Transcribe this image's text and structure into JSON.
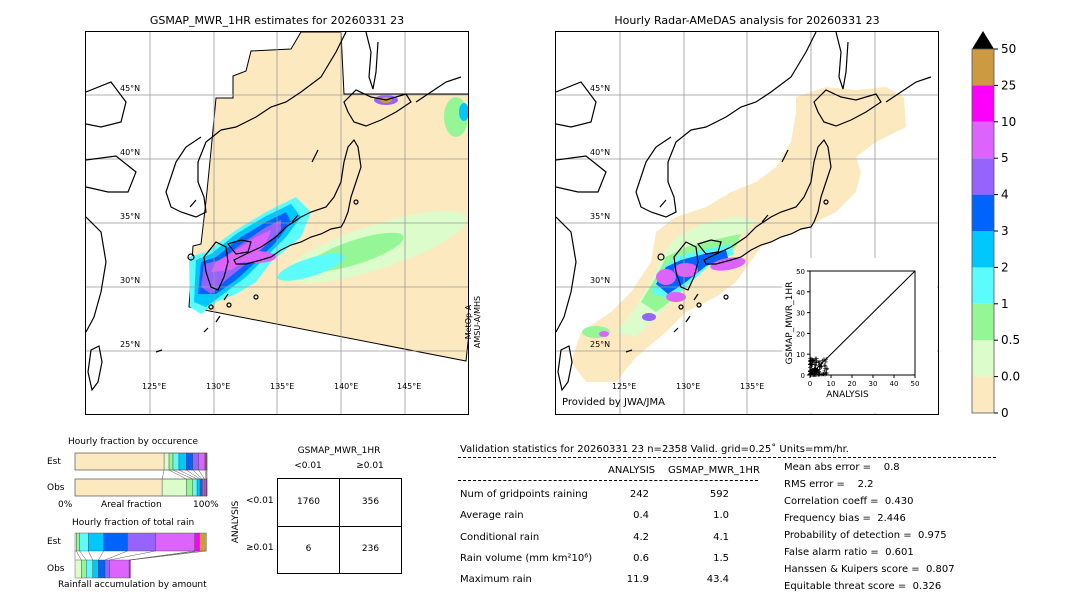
{
  "colors": {
    "scale": [
      "#fde9c0",
      "#dcfccc",
      "#94f694",
      "#5cfcfc",
      "#00c8fc",
      "#0064fc",
      "#9664fc",
      "#dc64fc",
      "#fc00fc",
      "#cc9a40"
    ],
    "over": "#000000"
  },
  "chart_data": [
    {
      "type": "map",
      "title": "GSMAP_MWR_1HR estimates for 20260331 23",
      "lon_ticks": [
        "125°E",
        "130°E",
        "135°E",
        "140°E",
        "145°E"
      ],
      "lat_ticks": [
        "45°N",
        "40°N",
        "35°N",
        "30°N",
        "25°N"
      ],
      "sensor_label_line1": "MetOp-A",
      "sensor_label_line2": "AMSU-A/MHS"
    },
    {
      "type": "map",
      "title": "Hourly Radar-AMeDAS analysis for 20260331 23",
      "lon_ticks": [
        "125°E",
        "130°E",
        "135°E"
      ],
      "lat_ticks": [
        "45°N",
        "40°N",
        "35°N",
        "30°N",
        "25°N"
      ],
      "credit": "Provided by JWA/JMA"
    },
    {
      "type": "scatter",
      "xlabel": "ANALYSIS",
      "ylabel": "GSMAP_MWR_1HR",
      "xlim": [
        0,
        50
      ],
      "ylim": [
        0,
        50
      ],
      "ticks": [
        "0",
        "10",
        "20",
        "30",
        "40",
        "50"
      ]
    },
    {
      "type": "colorbar",
      "tick_labels": [
        "0",
        "0.01",
        "0.5",
        "1",
        "2",
        "3",
        "4",
        "5",
        "10",
        "25",
        "50"
      ],
      "extend": "max"
    },
    {
      "type": "bar",
      "title": "Hourly fraction by occurence",
      "rows": [
        "Est",
        "Obs"
      ],
      "xlabel": "Areal fraction",
      "x_min_label": "0%",
      "x_max_label": "100%",
      "series": [
        {
          "row": "Est",
          "percent": [
            67.5,
            3.75,
            3,
            4.5,
            5.5,
            5,
            4.5,
            4.75,
            1,
            0.5
          ]
        },
        {
          "row": "Obs",
          "percent": [
            66,
            18.25,
            5,
            3.25,
            2.25,
            1.75,
            1.5,
            1.25,
            0.5,
            0.25
          ]
        }
      ]
    },
    {
      "type": "bar",
      "title": "Hourly fraction of total rain",
      "rows": [
        "Est",
        "Obs"
      ],
      "xlabel": "Rainfall accumulation by amount",
      "series": [
        {
          "row": "Est",
          "percent": [
            0,
            1,
            2.5,
            6.5,
            11.75,
            18,
            21.25,
            29.75,
            3.5,
            5.25
          ]
        },
        {
          "row": "Obs",
          "percent": [
            0,
            4.75,
            3.75,
            5,
            4.25,
            5,
            3.5,
            14.75,
            1,
            0
          ]
        }
      ]
    },
    {
      "type": "table",
      "title": "GSMAP_MWR_1HR",
      "col_headers": [
        "<0.01",
        "≥0.01"
      ],
      "row_label": "ANALYSIS",
      "row_headers": [
        "<0.01",
        "≥0.01"
      ],
      "cells": [
        [
          "1760",
          "356"
        ],
        [
          "6",
          "236"
        ]
      ]
    }
  ],
  "stats": {
    "title": "Validation statistics for 20260331 23  n=2358 Valid. grid=0.25˚ Units=mm/hr.",
    "col_analysis": "ANALYSIS",
    "col_gsmap": "GSMAP_MWR_1HR",
    "rows": [
      {
        "label": "Num of gridpoints raining",
        "analysis": "242",
        "gsmap": "592"
      },
      {
        "label": "Average rain",
        "analysis": "0.4",
        "gsmap": "1.0"
      },
      {
        "label": "Conditional rain",
        "analysis": "4.2",
        "gsmap": "4.1"
      },
      {
        "label": "Rain volume (mm km²10⁶)",
        "analysis": "0.6",
        "gsmap": "1.5"
      },
      {
        "label": "Maximum rain",
        "analysis": "11.9",
        "gsmap": "43.4"
      }
    ],
    "scores": [
      "Mean abs error =    0.8",
      "RMS error =    2.2",
      "Correlation coeff =  0.430",
      "Frequency bias =  2.446",
      "Probability of detection =  0.975",
      "False alarm ratio =  0.601",
      "Hanssen & Kuipers score =  0.807",
      "Equitable threat score =  0.326"
    ]
  }
}
